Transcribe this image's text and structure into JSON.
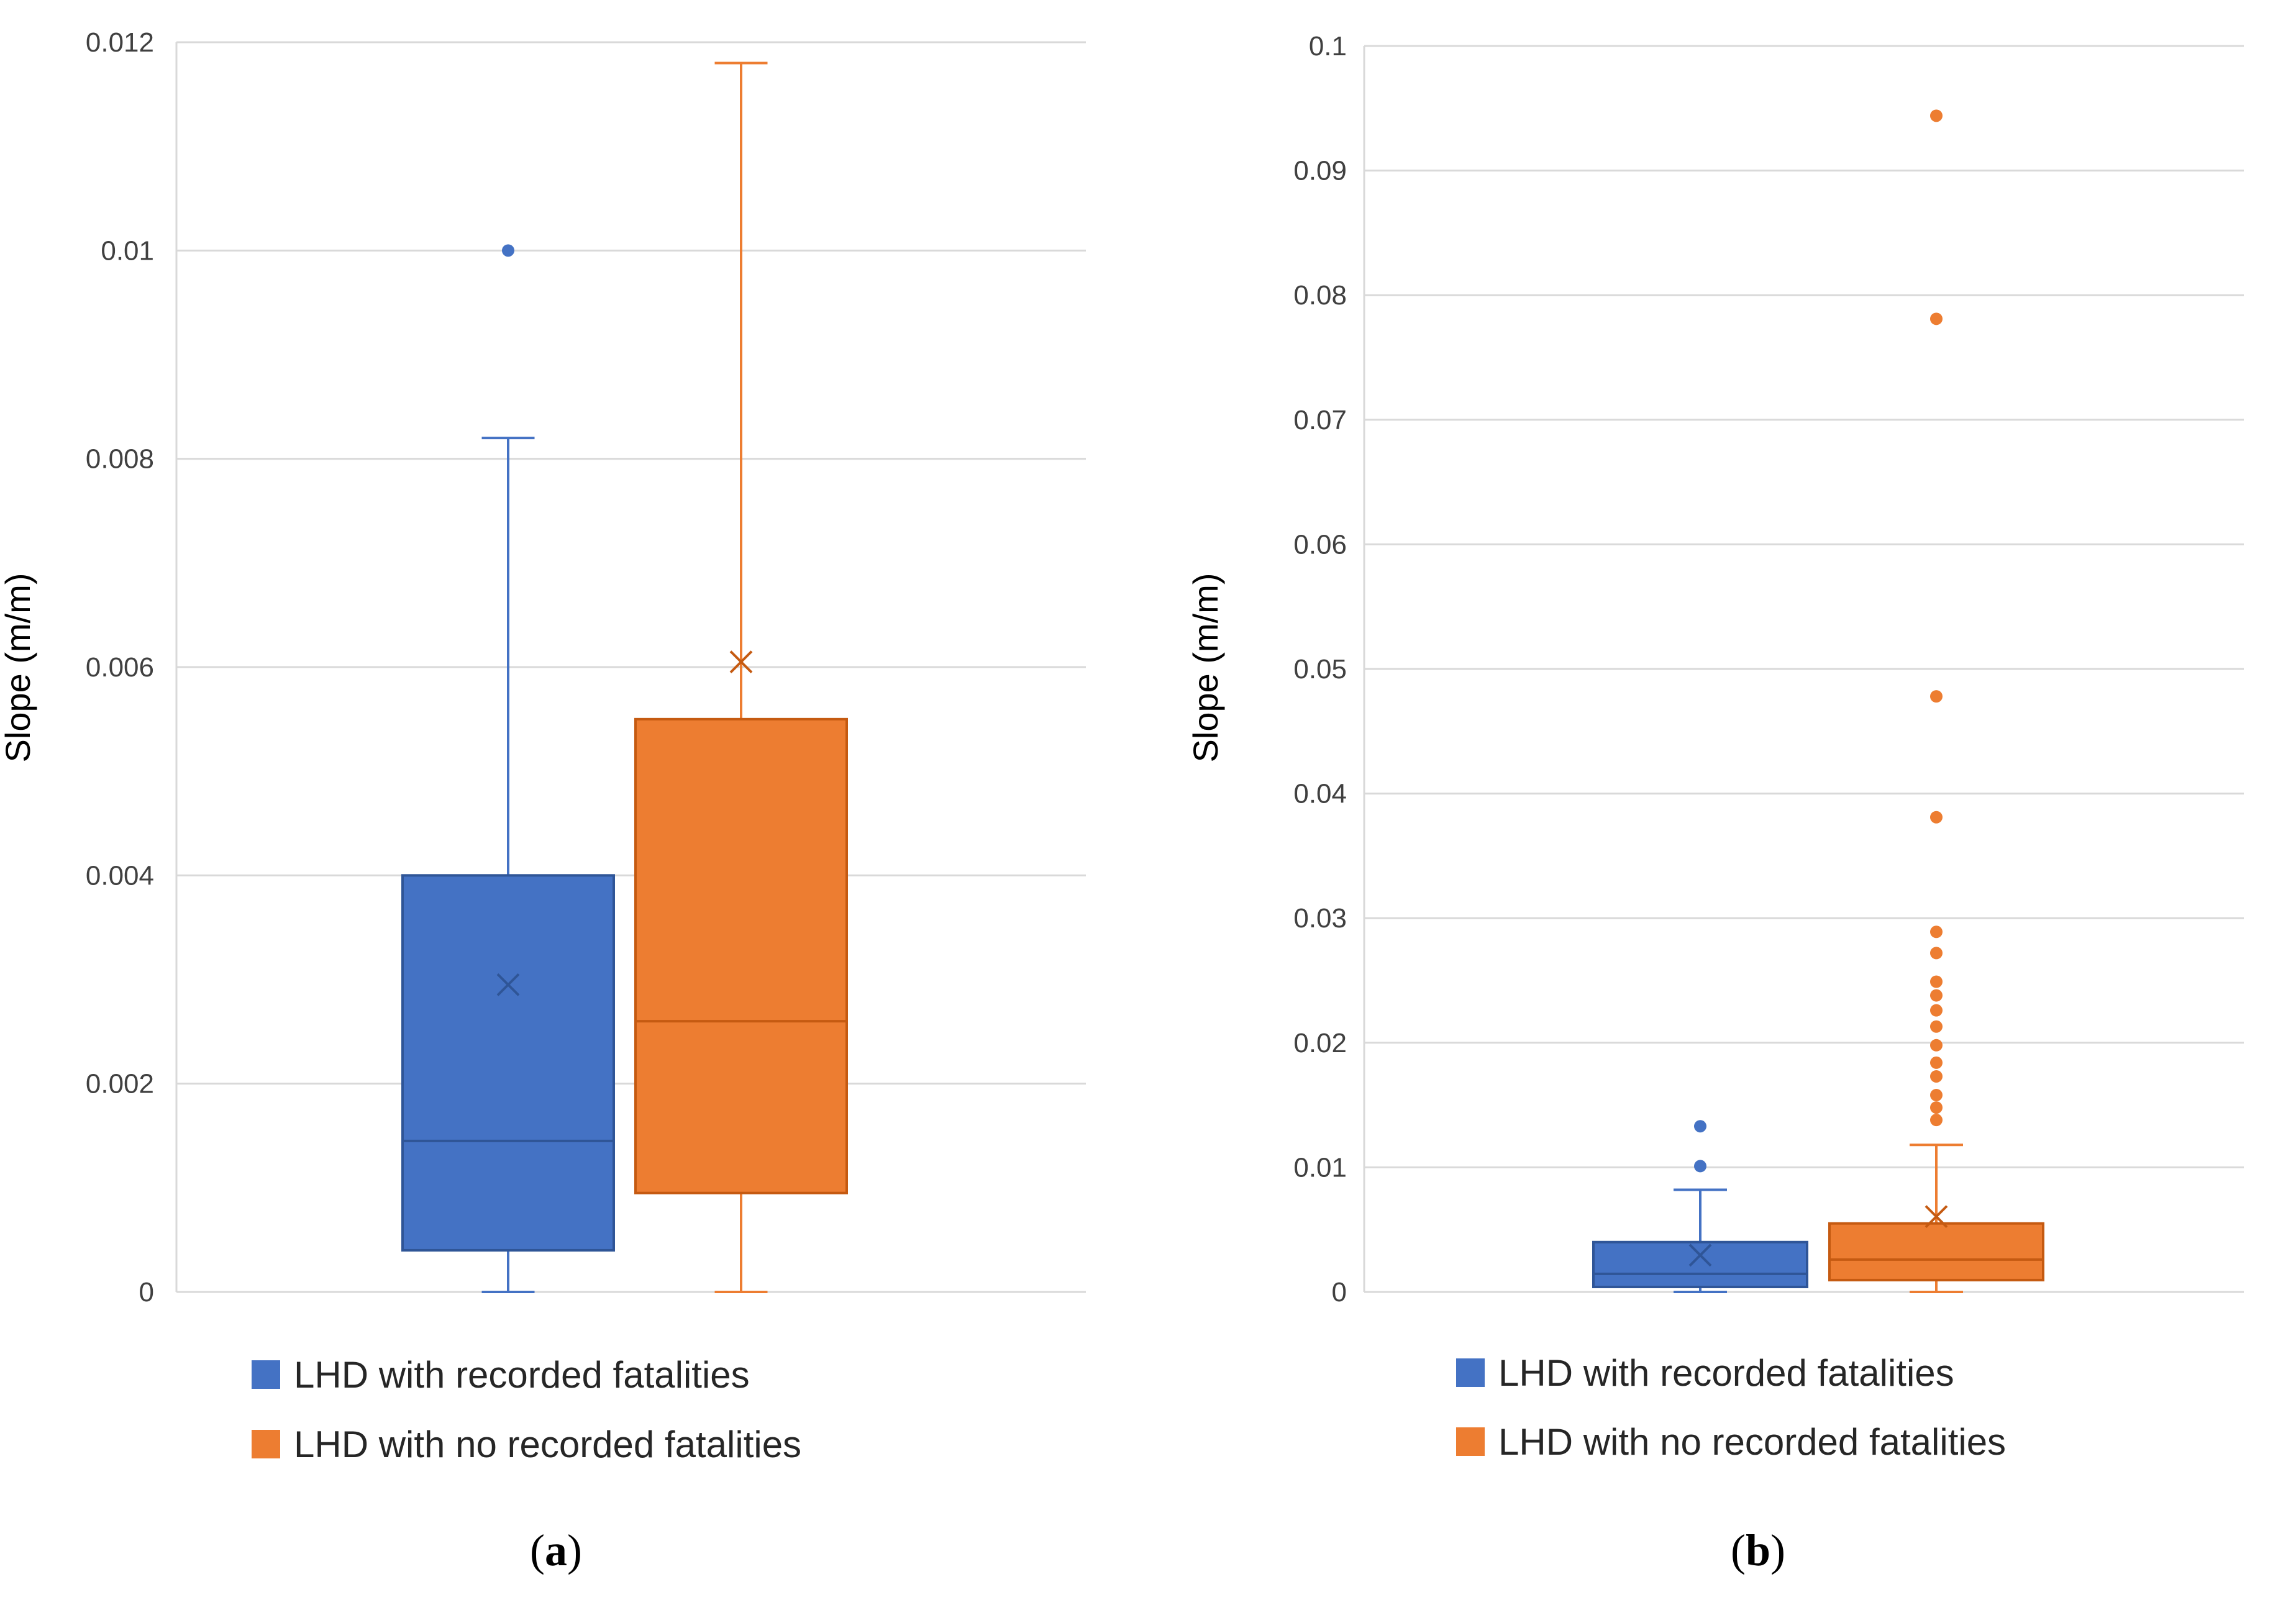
{
  "chart_data": [
    {
      "type": "box",
      "panel_label": "a",
      "ylabel": "Slope (m/m)",
      "ylim": [
        0,
        0.012
      ],
      "yticks": [
        "0",
        "0.002",
        "0.004",
        "0.006",
        "0.008",
        "0.01",
        "0.012"
      ],
      "ytick_values": [
        0,
        0.002,
        0.004,
        0.006,
        0.008,
        0.01,
        0.012
      ],
      "grid": true,
      "legend_position": "bottom",
      "series": [
        {
          "name": "LHD with recorded fatalities",
          "color": "#4472C4",
          "min": 0.0,
          "q1": 0.0004,
          "median": 0.00145,
          "q3": 0.004,
          "max": 0.0082,
          "mean": 0.00295,
          "outliers": [
            0.01
          ]
        },
        {
          "name": "LHD with no recorded fatalities",
          "color": "#ED7D31",
          "min": 0.0,
          "q1": 0.00095,
          "median": 0.0026,
          "q3": 0.0055,
          "max": 0.0118,
          "mean": 0.00605,
          "outliers": []
        }
      ]
    },
    {
      "type": "box",
      "panel_label": "b",
      "ylabel": "Slope (m/m)",
      "ylim": [
        0,
        0.1
      ],
      "yticks": [
        "0",
        "0.01",
        "0.02",
        "0.03",
        "0.04",
        "0.05",
        "0.06",
        "0.07",
        "0.08",
        "0.09",
        "0.1"
      ],
      "ytick_values": [
        0,
        0.01,
        0.02,
        0.03,
        0.04,
        0.05,
        0.06,
        0.07,
        0.08,
        0.09,
        0.1
      ],
      "grid": true,
      "legend_position": "bottom",
      "series": [
        {
          "name": "LHD with recorded fatalities",
          "color": "#4472C4",
          "min": 0.0,
          "q1": 0.0004,
          "median": 0.00145,
          "q3": 0.004,
          "max": 0.0082,
          "mean": 0.00295,
          "outliers": [
            0.0101,
            0.0133
          ]
        },
        {
          "name": "LHD with no recorded fatalities",
          "color": "#ED7D31",
          "min": 0.0,
          "q1": 0.00095,
          "median": 0.0026,
          "q3": 0.0055,
          "max": 0.0118,
          "mean": 0.00605,
          "outliers": [
            0.0138,
            0.0148,
            0.0158,
            0.0173,
            0.0184,
            0.0198,
            0.0213,
            0.0226,
            0.0238,
            0.0249,
            0.0272,
            0.0289,
            0.0381,
            0.0478,
            0.0781,
            0.0944
          ]
        }
      ]
    }
  ]
}
